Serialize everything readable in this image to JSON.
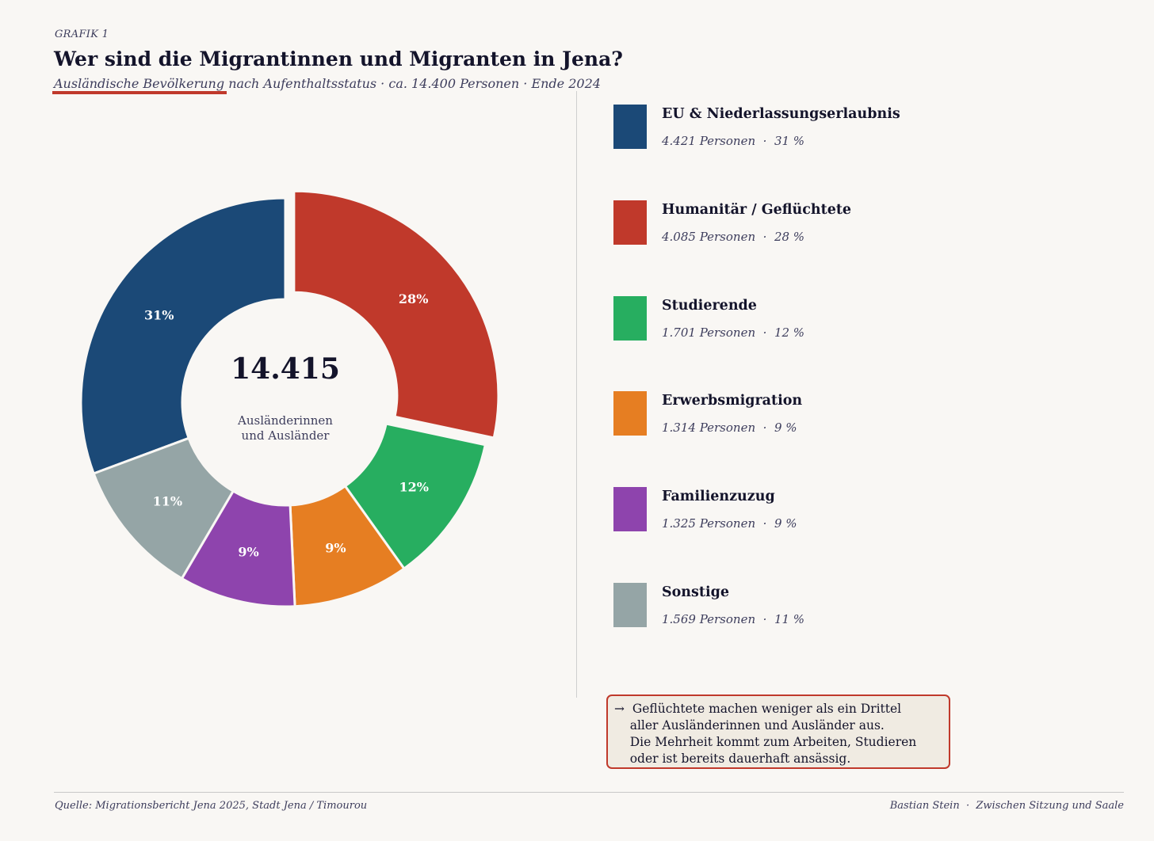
{
  "header": {
    "kicker": "GRAFIK 1",
    "title": "Wer sind die Migrantinnen und Migranten in Jena?",
    "subtitle": "Ausländische Bevölkerung nach Aufenthaltsstatus · ca. 14.400 Personen · Ende 2024"
  },
  "chart_data": {
    "type": "pie",
    "variant": "donut",
    "title": "Wer sind die Migrantinnen und Migranten in Jena?",
    "total": 14415,
    "center_value": "14.415",
    "center_label_line1": "Ausländerinnen",
    "center_label_line2": "und Ausländer",
    "exploded_slice": "Humanitär / Geflüchtete",
    "slices": [
      {
        "name": "EU & Niederlassungserlaubnis",
        "value": 4421,
        "percent": 31,
        "label": "31%",
        "detail": "4.421 Personen  ·  31 %",
        "color": "#1b4977"
      },
      {
        "name": "Humanitär / Geflüchtete",
        "value": 4085,
        "percent": 28,
        "label": "28%",
        "detail": "4.085 Personen  ·  28 %",
        "color": "#c0392b"
      },
      {
        "name": "Studierende",
        "value": 1701,
        "percent": 12,
        "label": "12%",
        "detail": "1.701 Personen  ·  12 %",
        "color": "#27ae60"
      },
      {
        "name": "Erwerbsmigration",
        "value": 1314,
        "percent": 9,
        "label": "9%",
        "detail": "1.314 Personen  ·  9 %",
        "color": "#e67e22"
      },
      {
        "name": "Familienzuzug",
        "value": 1325,
        "percent": 9,
        "label": "9%",
        "detail": "1.325 Personen  ·  9 %",
        "color": "#8e44ad"
      },
      {
        "name": "Sonstige",
        "value": 1569,
        "percent": 11,
        "label": "11%",
        "detail": "1.569 Personen  ·  11 %",
        "color": "#95a5a6"
      }
    ]
  },
  "callout": {
    "lines": [
      "→  Geflüchtete machen weniger als ein Drittel",
      "    aller Ausländerinnen und Ausländer aus.",
      "    Die Mehrheit kommt zum Arbeiten, Studieren",
      "    oder ist bereits dauerhaft ansässig."
    ]
  },
  "footer": {
    "source": "Quelle: Migrationsbericht Jena 2025, Stadt Jena / Timourou",
    "credit": "Bastian Stein  ·  Zwischen Sitzung und Saale"
  }
}
